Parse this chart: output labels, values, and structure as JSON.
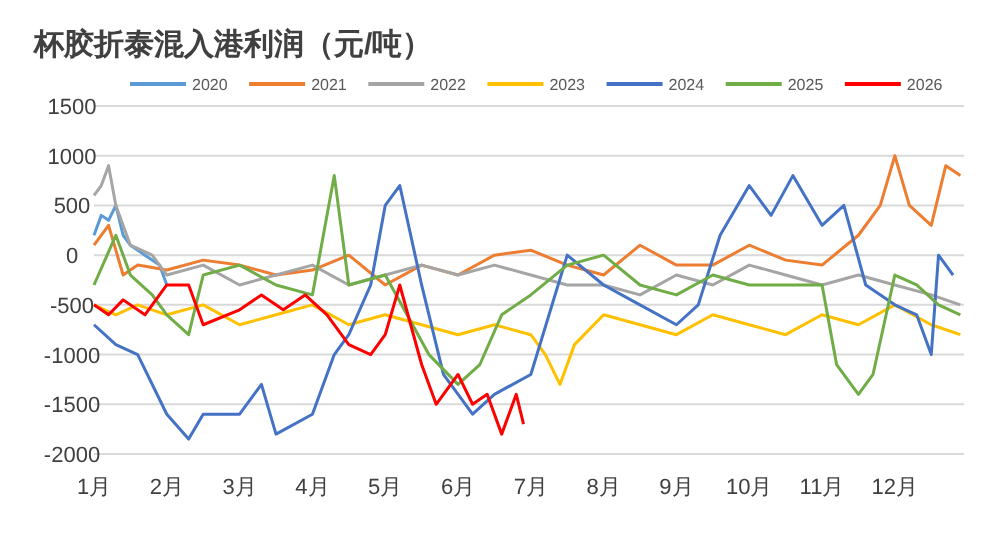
{
  "chart_data": {
    "type": "line",
    "title": "杯胶折泰混入港利润（元/吨）",
    "legend": "top",
    "grid": "y",
    "marker": "none",
    "xlim": [
      1,
      12.95
    ],
    "xticks": [
      {
        "value": 1,
        "label": "1月"
      },
      {
        "value": 2,
        "label": "2月"
      },
      {
        "value": 3,
        "label": "3月"
      },
      {
        "value": 4,
        "label": "4月"
      },
      {
        "value": 5,
        "label": "5月"
      },
      {
        "value": 6,
        "label": "6月"
      },
      {
        "value": 7,
        "label": "7月"
      },
      {
        "value": 8,
        "label": "8月"
      },
      {
        "value": 9,
        "label": "9月"
      },
      {
        "value": 10,
        "label": "10月"
      },
      {
        "value": 11,
        "label": "11月"
      },
      {
        "value": 12,
        "label": "12月"
      }
    ],
    "ylim": [
      -2000,
      1500
    ],
    "yticks": [
      -2000,
      -1500,
      -1000,
      -500,
      0,
      500,
      1000,
      1500
    ],
    "series": [
      {
        "name": "2020",
        "color": "#5b9bd5",
        "x": [
          1.0,
          1.1,
          1.2,
          1.3,
          1.4,
          1.5,
          1.7,
          1.9,
          2.0
        ],
        "values": [
          200,
          400,
          350,
          500,
          200,
          100,
          0,
          -100,
          -300
        ]
      },
      {
        "name": "2021",
        "color": "#ed7d31",
        "x": [
          1.0,
          1.2,
          1.4,
          1.6,
          2,
          2.5,
          3,
          3.5,
          4,
          4.5,
          5,
          5.5,
          6,
          6.5,
          7,
          7.5,
          8,
          8.5,
          9,
          9.5,
          10,
          10.5,
          11,
          11.5,
          11.8,
          12,
          12.2,
          12.5,
          12.7,
          12.9
        ],
        "values": [
          100,
          300,
          -200,
          -100,
          -150,
          -50,
          -100,
          -200,
          -150,
          0,
          -300,
          -100,
          -200,
          0,
          50,
          -100,
          -200,
          100,
          -100,
          -100,
          100,
          -50,
          -100,
          200,
          500,
          1000,
          500,
          300,
          900,
          800
        ]
      },
      {
        "name": "2022",
        "color": "#a5a5a5",
        "x": [
          1.0,
          1.1,
          1.2,
          1.3,
          1.5,
          1.8,
          2,
          2.5,
          3,
          3.5,
          4,
          4.5,
          5,
          5.5,
          6,
          6.5,
          7,
          7.5,
          8,
          8.5,
          9,
          9.5,
          10,
          10.5,
          11,
          11.5,
          12,
          12.5,
          12.9
        ],
        "values": [
          600,
          700,
          900,
          500,
          100,
          0,
          -200,
          -100,
          -300,
          -200,
          -100,
          -300,
          -200,
          -100,
          -200,
          -100,
          -200,
          -300,
          -300,
          -400,
          -200,
          -300,
          -100,
          -200,
          -300,
          -200,
          -300,
          -400,
          -500
        ]
      },
      {
        "name": "2023",
        "color": "#ffc000",
        "x": [
          1.0,
          1.3,
          1.6,
          2,
          2.5,
          3,
          3.5,
          4,
          4.5,
          5,
          5.5,
          6,
          6.5,
          7,
          7.2,
          7.4,
          7.6,
          8,
          8.5,
          9,
          9.5,
          10,
          10.5,
          11,
          11.5,
          12,
          12.5,
          12.9
        ],
        "values": [
          -500,
          -600,
          -500,
          -600,
          -500,
          -700,
          -600,
          -500,
          -700,
          -600,
          -700,
          -800,
          -700,
          -800,
          -1000,
          -1300,
          -900,
          -600,
          -700,
          -800,
          -600,
          -700,
          -800,
          -600,
          -700,
          -500,
          -700,
          -800
        ]
      },
      {
        "name": "2024",
        "color": "#4472c4",
        "x": [
          1.0,
          1.3,
          1.6,
          2,
          2.3,
          2.5,
          3,
          3.3,
          3.5,
          4,
          4.3,
          4.5,
          4.8,
          5,
          5.2,
          5.5,
          5.8,
          6.2,
          6.5,
          7,
          7.5,
          8,
          8.5,
          9,
          9.3,
          9.6,
          10,
          10.3,
          10.6,
          11,
          11.3,
          11.6,
          12,
          12.3,
          12.5,
          12.6,
          12.8
        ],
        "values": [
          -700,
          -900,
          -1000,
          -1600,
          -1850,
          -1600,
          -1600,
          -1300,
          -1800,
          -1600,
          -1000,
          -800,
          -300,
          500,
          700,
          -300,
          -1200,
          -1600,
          -1400,
          -1200,
          0,
          -300,
          -500,
          -700,
          -500,
          200,
          700,
          400,
          800,
          300,
          500,
          -300,
          -500,
          -600,
          -1000,
          0,
          -200
        ]
      },
      {
        "name": "2025",
        "color": "#70ad47",
        "x": [
          1.0,
          1.3,
          1.5,
          1.8,
          2,
          2.3,
          2.5,
          3,
          3.5,
          4,
          4.3,
          4.5,
          5,
          5.3,
          5.6,
          6,
          6.3,
          6.6,
          7,
          7.5,
          8,
          8.5,
          9,
          9.5,
          10,
          10.5,
          11,
          11.2,
          11.5,
          11.7,
          12,
          12.3,
          12.6,
          12.9
        ],
        "values": [
          -300,
          200,
          -200,
          -400,
          -600,
          -800,
          -200,
          -100,
          -300,
          -400,
          800,
          -300,
          -200,
          -600,
          -1000,
          -1300,
          -1100,
          -600,
          -400,
          -100,
          0,
          -300,
          -400,
          -200,
          -300,
          -300,
          -300,
          -1100,
          -1400,
          -1200,
          -200,
          -300,
          -500,
          -600
        ]
      },
      {
        "name": "2026",
        "color": "#ff0000",
        "x": [
          1.0,
          1.2,
          1.4,
          1.7,
          2,
          2.3,
          2.5,
          3,
          3.3,
          3.6,
          3.9,
          4.2,
          4.5,
          4.8,
          5,
          5.2,
          5.5,
          5.7,
          6,
          6.2,
          6.4,
          6.6,
          6.8,
          6.9
        ],
        "values": [
          -500,
          -600,
          -450,
          -600,
          -300,
          -300,
          -700,
          -550,
          -400,
          -550,
          -400,
          -600,
          -900,
          -1000,
          -800,
          -300,
          -1100,
          -1500,
          -1200,
          -1500,
          -1400,
          -1800,
          -1400,
          -1700
        ]
      }
    ]
  }
}
